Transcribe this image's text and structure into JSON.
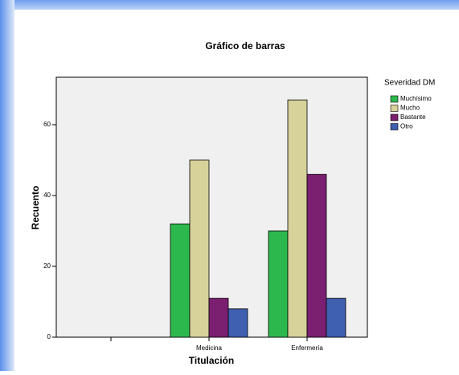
{
  "chart_data": {
    "type": "bar",
    "title": "Gráfico de barras",
    "x_label": "Titulación",
    "y_label": "Recuento",
    "categories": [
      null,
      "Medicina",
      "Enfermería"
    ],
    "legend_title": "Severidad DM",
    "series": [
      {
        "name": "Muchísimo",
        "color": "#2db84d",
        "values": [
          0,
          32,
          30
        ]
      },
      {
        "name": "Mucho",
        "color": "#d6d29a",
        "values": [
          0,
          50,
          67
        ]
      },
      {
        "name": "Bastante",
        "color": "#7b2070",
        "values": [
          0,
          11,
          46
        ]
      },
      {
        "name": "Otro",
        "color": "#3f5fb0",
        "values": [
          0,
          8,
          11
        ]
      }
    ],
    "ylim": [
      0,
      73.4
    ],
    "yticks": [
      0,
      20,
      40,
      60
    ],
    "grid": false,
    "legend": "right"
  }
}
